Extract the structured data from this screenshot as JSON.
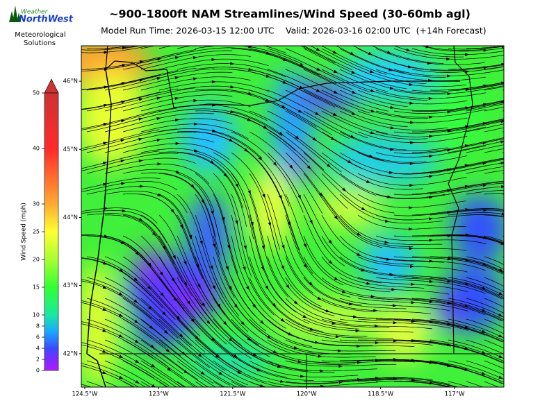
{
  "header": {
    "title": "~900-1800ft NAM Streamlines/Wind Speed (30-60mb agl)",
    "model_run": "Model Run Time: 2026-03-15 12:00 UTC",
    "valid": "Valid: 2026-03-16 02:00 UTC  (+14h Forecast)"
  },
  "logo": {
    "brand_top": "Weather",
    "brand_main": "NorthWest",
    "tagline": [
      "Meteorological",
      "Solutions"
    ]
  },
  "colorbar": {
    "label": "Wind Speed (mph)",
    "lim": [
      0,
      50
    ],
    "ticks": [
      0,
      2,
      4,
      6,
      8,
      10,
      15,
      20,
      25,
      30,
      40,
      50
    ]
  },
  "map": {
    "lon_range": [
      -124.57,
      -116.0
    ],
    "lat_range": [
      41.51,
      46.52
    ],
    "lat_ticks": [
      {
        "value": 46,
        "label": "46°N"
      },
      {
        "value": 45,
        "label": "45°N"
      },
      {
        "value": 44,
        "label": "44°N"
      },
      {
        "value": 43,
        "label": "43°N"
      },
      {
        "value": 42,
        "label": "42°N"
      }
    ],
    "lon_ticks": [
      {
        "value": -124.5,
        "label": "124.5°W"
      },
      {
        "value": -123,
        "label": "123°W"
      },
      {
        "value": -121.5,
        "label": "121.5°W"
      },
      {
        "value": -120,
        "label": "120°W"
      },
      {
        "value": -118.5,
        "label": "118.5°W"
      },
      {
        "value": -117,
        "label": "117°W"
      }
    ]
  }
}
